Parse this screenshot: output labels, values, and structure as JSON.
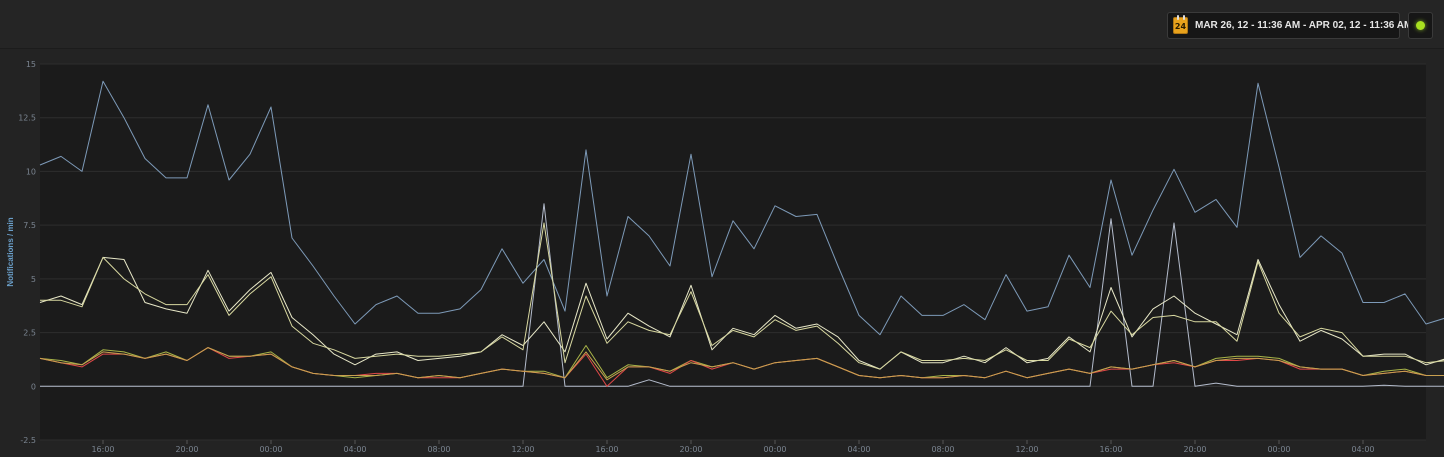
{
  "header": {
    "date_range_label": "MAR 26, 12 - 11:36 AM - APR 02, 12 - 11:36 AM",
    "calendar_icon": "calendar-icon",
    "calendar_day": "24",
    "status_color": "#a8e020"
  },
  "chart_data": {
    "type": "line",
    "ylabel": "Notifications / min",
    "ylim": [
      -2.5,
      15
    ],
    "yticks": [
      -2.5,
      0,
      2.5,
      5,
      7.5,
      10,
      12.5,
      15
    ],
    "ytick_labels": [
      "-2.5",
      "0",
      "2.5",
      "5",
      "7.5",
      "10",
      "12.5",
      "15"
    ],
    "xticks": [
      3,
      7,
      11,
      15,
      19,
      23,
      27,
      31,
      35,
      39,
      43,
      47,
      51,
      55,
      59,
      63
    ],
    "xtick_labels": [
      "16:00",
      "20:00",
      "00:00",
      "04:00",
      "08:00",
      "12:00",
      "16:00",
      "20:00",
      "00:00",
      "04:00",
      "08:00",
      "12:00",
      "16:00",
      "20:00",
      "00:00",
      "04:00"
    ],
    "xlim": [
      0,
      66
    ],
    "grid": true,
    "series": [
      {
        "color": "#7d9ab8",
        "values": [
          10.3,
          10.7,
          10.0,
          14.2,
          12.5,
          10.6,
          9.7,
          9.7,
          13.1,
          9.6,
          10.8,
          13.0,
          6.9,
          5.6,
          4.2,
          2.9,
          3.8,
          4.2,
          3.4,
          3.4,
          3.6,
          4.5,
          6.4,
          4.8,
          5.9,
          3.5,
          11.0,
          4.2,
          7.9,
          7.0,
          5.6,
          10.8,
          5.1,
          7.7,
          6.4,
          8.4,
          7.9,
          8.0,
          5.6,
          3.3,
          2.4,
          4.2,
          3.3,
          3.3,
          3.8,
          3.1,
          5.2,
          3.5,
          3.7,
          6.1,
          4.6,
          9.6,
          6.1,
          8.2,
          10.1,
          8.1,
          8.7,
          7.4,
          14.1,
          10.2,
          6.0,
          7.0,
          6.2,
          3.9,
          3.9,
          4.3,
          2.9,
          3.2
        ]
      },
      {
        "color": "#b4bccc",
        "values": [
          0,
          0,
          0,
          0,
          0,
          0,
          0,
          0,
          0,
          0,
          0,
          0,
          0,
          0,
          0,
          0,
          0,
          0,
          0,
          0,
          0,
          0,
          0,
          0,
          8.5,
          0,
          0,
          0,
          0,
          0.3,
          0,
          0,
          0,
          0,
          0,
          0,
          0,
          0,
          0,
          0,
          0,
          0,
          0,
          0,
          0,
          0,
          0,
          0,
          0,
          0,
          0,
          7.8,
          0,
          0,
          7.6,
          0,
          0.15,
          0,
          0,
          0,
          0,
          0,
          0,
          0,
          0.05,
          0,
          0,
          0
        ]
      },
      {
        "color": "#e8e8c8",
        "values": [
          3.9,
          4.2,
          3.8,
          6.0,
          5.9,
          3.9,
          3.6,
          3.4,
          5.4,
          3.5,
          4.5,
          5.3,
          3.2,
          2.4,
          1.5,
          1.0,
          1.5,
          1.6,
          1.2,
          1.3,
          1.4,
          1.6,
          2.4,
          1.9,
          3.0,
          1.6,
          4.8,
          2.2,
          3.4,
          2.8,
          2.3,
          4.7,
          1.7,
          2.7,
          2.4,
          3.3,
          2.7,
          2.9,
          2.3,
          1.2,
          0.8,
          1.6,
          1.1,
          1.1,
          1.4,
          1.1,
          1.8,
          1.1,
          1.3,
          2.3,
          1.6,
          4.6,
          2.3,
          3.6,
          4.2,
          3.4,
          2.9,
          2.4,
          5.9,
          3.8,
          2.1,
          2.6,
          2.2,
          1.4,
          1.5,
          1.5,
          1.0,
          1.3
        ]
      },
      {
        "color": "#d8d8a0",
        "values": [
          4.0,
          4.0,
          3.7,
          6.0,
          5.0,
          4.3,
          3.8,
          3.8,
          5.2,
          3.3,
          4.3,
          5.1,
          2.8,
          2.0,
          1.7,
          1.3,
          1.4,
          1.5,
          1.4,
          1.4,
          1.5,
          1.6,
          2.3,
          1.7,
          7.6,
          1.1,
          4.2,
          2.0,
          3.0,
          2.6,
          2.4,
          4.4,
          1.9,
          2.6,
          2.3,
          3.1,
          2.6,
          2.8,
          2.0,
          1.1,
          0.8,
          1.6,
          1.2,
          1.2,
          1.3,
          1.2,
          1.7,
          1.2,
          1.2,
          2.2,
          1.8,
          3.5,
          2.4,
          3.2,
          3.3,
          3.0,
          3.0,
          2.1,
          5.8,
          3.4,
          2.3,
          2.7,
          2.5,
          1.4,
          1.4,
          1.4,
          1.1,
          1.2
        ]
      },
      {
        "color": "#a8b448",
        "values": [
          1.3,
          1.2,
          1.0,
          1.7,
          1.6,
          1.3,
          1.6,
          1.2,
          1.8,
          1.4,
          1.4,
          1.6,
          0.9,
          0.6,
          0.5,
          0.4,
          0.5,
          0.6,
          0.4,
          0.5,
          0.4,
          0.6,
          0.8,
          0.7,
          0.7,
          0.4,
          1.9,
          0.4,
          1.0,
          0.9,
          0.7,
          1.2,
          0.9,
          1.1,
          0.8,
          1.1,
          1.2,
          1.3,
          0.9,
          0.5,
          0.4,
          0.5,
          0.4,
          0.5,
          0.5,
          0.4,
          0.7,
          0.4,
          0.6,
          0.8,
          0.6,
          0.9,
          0.8,
          1.0,
          1.2,
          0.9,
          1.3,
          1.4,
          1.4,
          1.3,
          0.9,
          0.8,
          0.8,
          0.5,
          0.7,
          0.8,
          0.5,
          0.5
        ]
      },
      {
        "color": "#e04848",
        "values": [
          1.3,
          1.1,
          0.9,
          1.5,
          1.5,
          1.3,
          1.5,
          1.2,
          1.8,
          1.3,
          1.4,
          1.5,
          0.9,
          0.6,
          0.5,
          0.5,
          0.6,
          0.6,
          0.4,
          0.4,
          0.4,
          0.6,
          0.8,
          0.7,
          0.6,
          0.4,
          1.5,
          0.0,
          0.9,
          0.9,
          0.6,
          1.2,
          0.8,
          1.1,
          0.8,
          1.1,
          1.2,
          1.3,
          0.9,
          0.5,
          0.4,
          0.5,
          0.4,
          0.4,
          0.5,
          0.4,
          0.7,
          0.4,
          0.6,
          0.8,
          0.6,
          0.8,
          0.8,
          1.0,
          1.1,
          0.9,
          1.2,
          1.2,
          1.3,
          1.2,
          0.8,
          0.8,
          0.8,
          0.5,
          0.6,
          0.7,
          0.5,
          0.5
        ]
      },
      {
        "color": "#c8a050",
        "values": [
          1.3,
          1.1,
          1.0,
          1.6,
          1.5,
          1.3,
          1.5,
          1.2,
          1.8,
          1.4,
          1.4,
          1.5,
          0.9,
          0.6,
          0.5,
          0.5,
          0.5,
          0.6,
          0.4,
          0.5,
          0.4,
          0.6,
          0.8,
          0.7,
          0.6,
          0.4,
          1.6,
          0.3,
          0.9,
          0.9,
          0.7,
          1.1,
          0.9,
          1.1,
          0.8,
          1.1,
          1.2,
          1.3,
          0.9,
          0.5,
          0.4,
          0.5,
          0.4,
          0.4,
          0.5,
          0.4,
          0.7,
          0.4,
          0.6,
          0.8,
          0.6,
          0.9,
          0.8,
          1.0,
          1.2,
          0.9,
          1.2,
          1.3,
          1.3,
          1.2,
          0.9,
          0.8,
          0.8,
          0.5,
          0.6,
          0.7,
          0.5,
          0.5
        ]
      }
    ]
  }
}
